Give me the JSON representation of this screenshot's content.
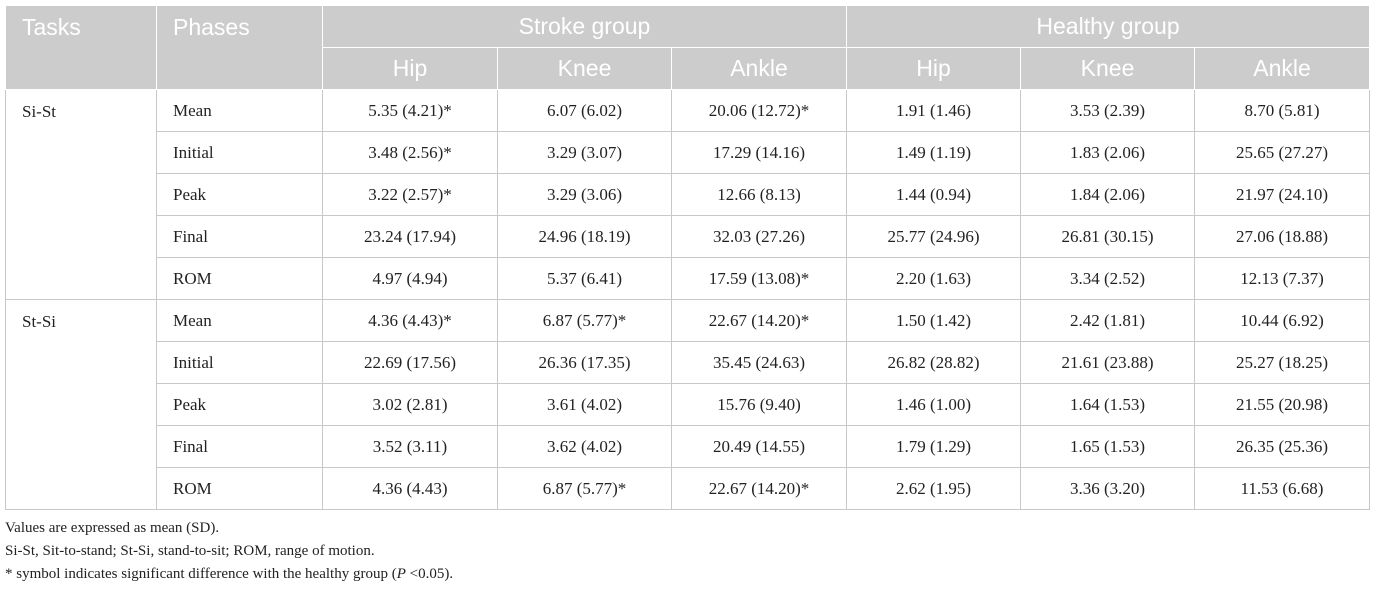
{
  "table": {
    "header": {
      "tasks": "Tasks",
      "phases": "Phases",
      "stroke_group": "Stroke group",
      "healthy_group": "Healthy group",
      "sub": [
        "Hip",
        "Knee",
        "Ankle",
        "Hip",
        "Knee",
        "Ankle"
      ]
    },
    "groups": [
      {
        "task": "Si-St",
        "rows": [
          {
            "phase": "Mean",
            "values": [
              "5.35 (4.21)*",
              "6.07 (6.02)",
              "20.06 (12.72)*",
              "1.91 (1.46)",
              "3.53 (2.39)",
              "8.70 (5.81)"
            ]
          },
          {
            "phase": "Initial",
            "values": [
              "3.48 (2.56)*",
              "3.29 (3.07)",
              "17.29 (14.16)",
              "1.49 (1.19)",
              "1.83 (2.06)",
              "25.65 (27.27)"
            ]
          },
          {
            "phase": "Peak",
            "values": [
              "3.22 (2.57)*",
              "3.29 (3.06)",
              "12.66 (8.13)",
              "1.44 (0.94)",
              "1.84 (2.06)",
              "21.97 (24.10)"
            ]
          },
          {
            "phase": "Final",
            "values": [
              "23.24 (17.94)",
              "24.96 (18.19)",
              "32.03 (27.26)",
              "25.77 (24.96)",
              "26.81 (30.15)",
              "27.06 (18.88)"
            ]
          },
          {
            "phase": "ROM",
            "values": [
              "4.97 (4.94)",
              "5.37 (6.41)",
              "17.59 (13.08)*",
              "2.20 (1.63)",
              "3.34 (2.52)",
              "12.13 (7.37)"
            ]
          }
        ]
      },
      {
        "task": "St-Si",
        "rows": [
          {
            "phase": "Mean",
            "values": [
              "4.36 (4.43)*",
              "6.87 (5.77)*",
              "22.67 (14.20)*",
              "1.50 (1.42)",
              "2.42 (1.81)",
              "10.44 (6.92)"
            ]
          },
          {
            "phase": "Initial",
            "values": [
              "22.69 (17.56)",
              "26.36 (17.35)",
              "35.45 (24.63)",
              "26.82 (28.82)",
              "21.61 (23.88)",
              "25.27 (18.25)"
            ]
          },
          {
            "phase": "Peak",
            "values": [
              "3.02 (2.81)",
              "3.61 (4.02)",
              "15.76 (9.40)",
              "1.46 (1.00)",
              "1.64 (1.53)",
              "21.55 (20.98)"
            ]
          },
          {
            "phase": "Final",
            "values": [
              "3.52 (3.11)",
              "3.62 (4.02)",
              "20.49 (14.55)",
              "1.79 (1.29)",
              "1.65 (1.53)",
              "26.35 (25.36)"
            ]
          },
          {
            "phase": "ROM",
            "values": [
              "4.36 (4.43)",
              "6.87 (5.77)*",
              "22.67 (14.20)*",
              "2.62 (1.95)",
              "3.36 (3.20)",
              "11.53 (6.68)"
            ]
          }
        ]
      }
    ]
  },
  "notes": {
    "line1": "Values are expressed as mean (SD).",
    "line2": "Si-St, Sit-to-stand; St-Si, stand-to-sit; ROM, range of motion.",
    "line3_pre": "* symbol indicates significant difference with the healthy group (",
    "line3_p": "P",
    "line3_post": " <0.05)."
  },
  "colors": {
    "header_bg": "#cccccc",
    "header_text": "#ffffff",
    "border": "#c8c8c8"
  }
}
